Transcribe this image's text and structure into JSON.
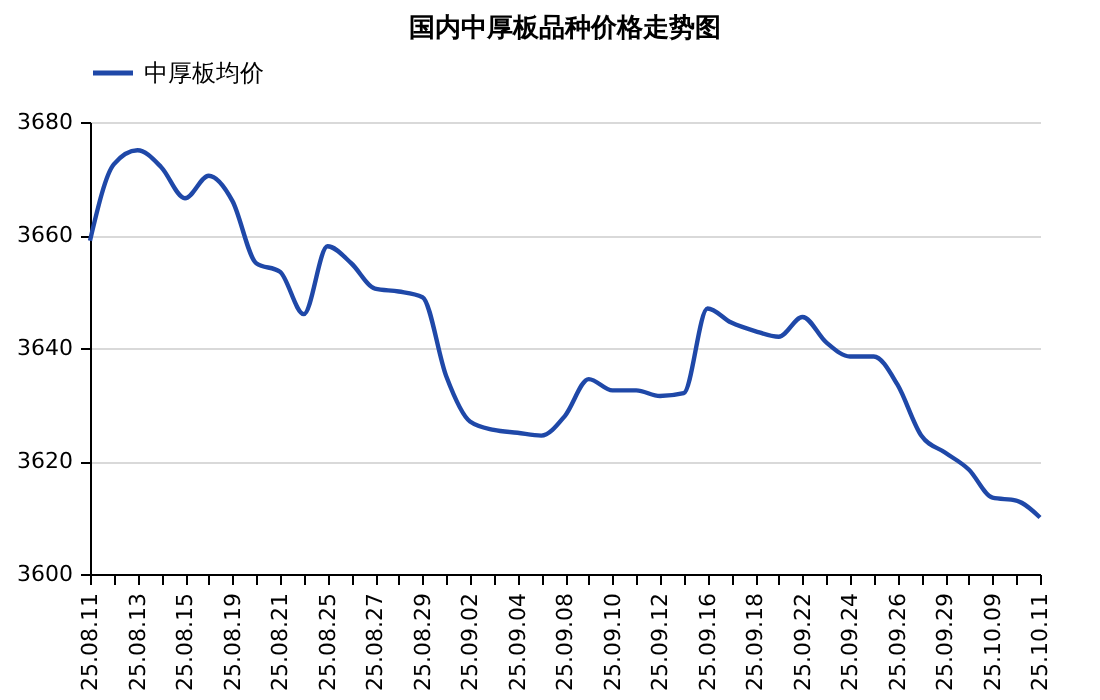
{
  "chart_data": {
    "type": "line",
    "title": "国内中厚板品种价格走势图",
    "categories": [
      "25.08.11",
      null,
      "25.08.13",
      null,
      "25.08.15",
      null,
      "25.08.19",
      null,
      "25.08.21",
      null,
      "25.08.25",
      null,
      "25.08.27",
      null,
      "25.08.29",
      null,
      "25.09.02",
      null,
      "25.09.04",
      null,
      "25.09.08",
      null,
      "25.09.10",
      null,
      "25.09.12",
      null,
      "25.09.16",
      null,
      "25.09.18",
      null,
      "25.09.22",
      null,
      "25.09.24",
      null,
      "25.09.26",
      null,
      "25.09.29",
      null,
      "25.10.09",
      null,
      "25.10.11"
    ],
    "series": [
      {
        "name": "中厚板均价",
        "color": "#1f48a8",
        "values": [
          3659,
          3672.5,
          3675,
          3672,
          3666.5,
          3670.5,
          3666,
          3655,
          3653.5,
          3646,
          3658,
          3655,
          3650.5,
          3650,
          3649,
          3635,
          3627,
          3625.5,
          3625,
          3624.5,
          3628,
          3634.5,
          3632.5,
          3632.5,
          3631.5,
          3632,
          3647,
          3644.5,
          3643,
          3642,
          3645.5,
          3641,
          3638.5,
          3638.5,
          3633.5,
          3624.5,
          3621.5,
          3618.5,
          3613.5,
          3613,
          3610
        ]
      }
    ],
    "ylim": [
      3600,
      3680
    ],
    "yticks": [
      3600,
      3620,
      3640,
      3660,
      3680
    ],
    "grid": "y",
    "legend": "top",
    "line_style": "solid",
    "marker": "none"
  }
}
